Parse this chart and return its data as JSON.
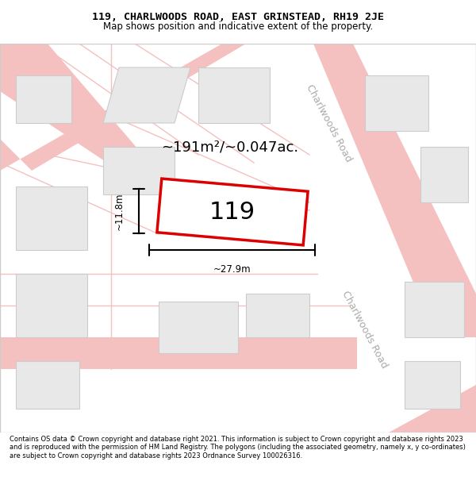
{
  "title_line1": "119, CHARLWOODS ROAD, EAST GRINSTEAD, RH19 2JE",
  "title_line2": "Map shows position and indicative extent of the property.",
  "footer_text": "Contains OS data © Crown copyright and database right 2021. This information is subject to Crown copyright and database rights 2023 and is reproduced with the permission of HM Land Registry. The polygons (including the associated geometry, namely x, y co-ordinates) are subject to Crown copyright and database rights 2023 Ordnance Survey 100026316.",
  "bg_color": "#ffffff",
  "map_bg": "#ffffff",
  "road_color": "#f5c0c0",
  "road_edge_color": "#cccccc",
  "building_fill": "#e8e8e8",
  "building_edge": "#cccccc",
  "highlight_fill": "#ffffff",
  "highlight_edge": "#dd0000",
  "street_label_color": "#aaaaaa",
  "dim_color": "#000000",
  "area_label": "~191m²/~0.047ac.",
  "house_label": "119",
  "dim_width": "~27.9m",
  "dim_height": "~11.8m"
}
